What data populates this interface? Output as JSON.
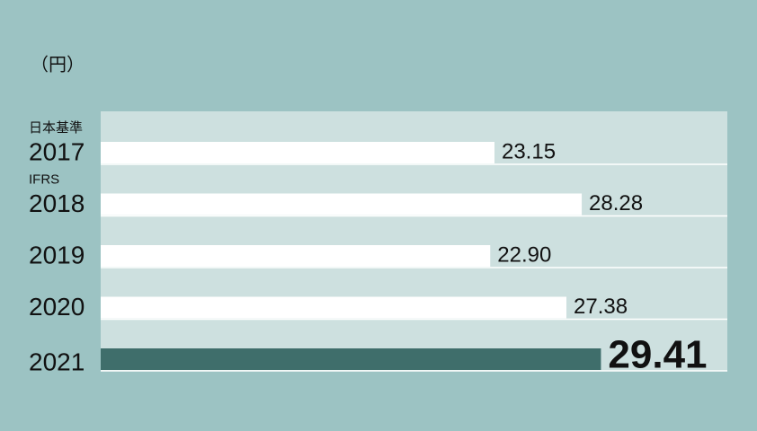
{
  "chart_data": {
    "type": "bar",
    "orientation": "horizontal",
    "unit_label": "（円）",
    "categories": [
      "2017",
      "2018",
      "2019",
      "2020",
      "2021"
    ],
    "category_notes": [
      "日本基準",
      "IFRS",
      null,
      null,
      null
    ],
    "values": [
      23.15,
      28.28,
      22.9,
      27.38,
      29.41
    ],
    "value_labels": [
      "23.15",
      "28.28",
      "22.90",
      "27.38",
      "29.41"
    ],
    "colors": [
      "#ffffff",
      "#ffffff",
      "#ffffff",
      "#ffffff",
      "#3f6e6b"
    ]
  }
}
